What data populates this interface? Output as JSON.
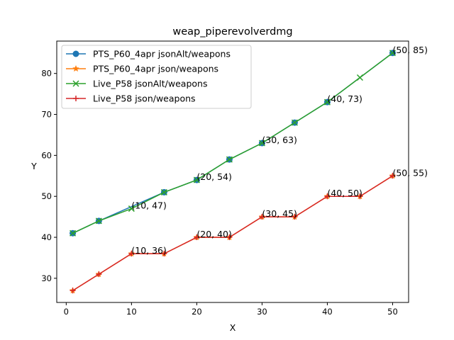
{
  "chart_data": {
    "type": "line",
    "title": "weap_piperevolverdmg",
    "xlabel": "X",
    "ylabel": "Y",
    "xlim": [
      -1.45,
      52.45
    ],
    "ylim": [
      24.1,
      87.9
    ],
    "xticks": [
      0,
      10,
      20,
      30,
      40,
      50
    ],
    "yticks": [
      30,
      40,
      50,
      60,
      70,
      80
    ],
    "grid": false,
    "legend_position": "top-left",
    "series": [
      {
        "name": "PTS_P60_4apr jsonAlt/weapons",
        "color": "#1f77b4",
        "marker": "circle",
        "x": [
          1,
          5,
          15,
          20,
          25,
          30,
          35,
          40,
          50
        ],
        "y": [
          41,
          44,
          51,
          54,
          59,
          63,
          68,
          73,
          85
        ]
      },
      {
        "name": "PTS_P60_4apr json/weapons",
        "color": "#ff7f0e",
        "marker": "star",
        "x": [
          1,
          5,
          10,
          15,
          20,
          25,
          30,
          35,
          40,
          45,
          50
        ],
        "y": [
          27,
          31,
          36,
          36,
          40,
          40,
          45,
          45,
          50,
          50,
          55
        ]
      },
      {
        "name": "Live_P58 jsonAlt/weapons",
        "color": "#2ca02c",
        "marker": "x",
        "x": [
          1,
          5,
          10,
          15,
          20,
          25,
          30,
          35,
          40,
          45,
          50
        ],
        "y": [
          41,
          44,
          47,
          51,
          54,
          59,
          63,
          68,
          73,
          79,
          85
        ]
      },
      {
        "name": "Live_P58 json/weapons",
        "color": "#d62728",
        "marker": "plus",
        "x": [
          1,
          5,
          10,
          15,
          20,
          25,
          30,
          35,
          40,
          45,
          50
        ],
        "y": [
          27,
          31,
          36,
          36,
          40,
          40,
          45,
          45,
          50,
          50,
          55
        ]
      }
    ],
    "annotations": [
      {
        "x": 10,
        "y": 47,
        "text": "(10, 47)"
      },
      {
        "x": 10,
        "y": 36,
        "text": "(10, 36)"
      },
      {
        "x": 20,
        "y": 54,
        "text": "(20, 54)"
      },
      {
        "x": 20,
        "y": 40,
        "text": "(20, 40)"
      },
      {
        "x": 30,
        "y": 63,
        "text": "(30, 63)"
      },
      {
        "x": 30,
        "y": 45,
        "text": "(30, 45)"
      },
      {
        "x": 40,
        "y": 73,
        "text": "(40, 73)"
      },
      {
        "x": 40,
        "y": 50,
        "text": "(40, 50)"
      },
      {
        "x": 50,
        "y": 85,
        "text": "(50, 85)"
      },
      {
        "x": 50,
        "y": 55,
        "text": "(50, 55)"
      }
    ]
  }
}
